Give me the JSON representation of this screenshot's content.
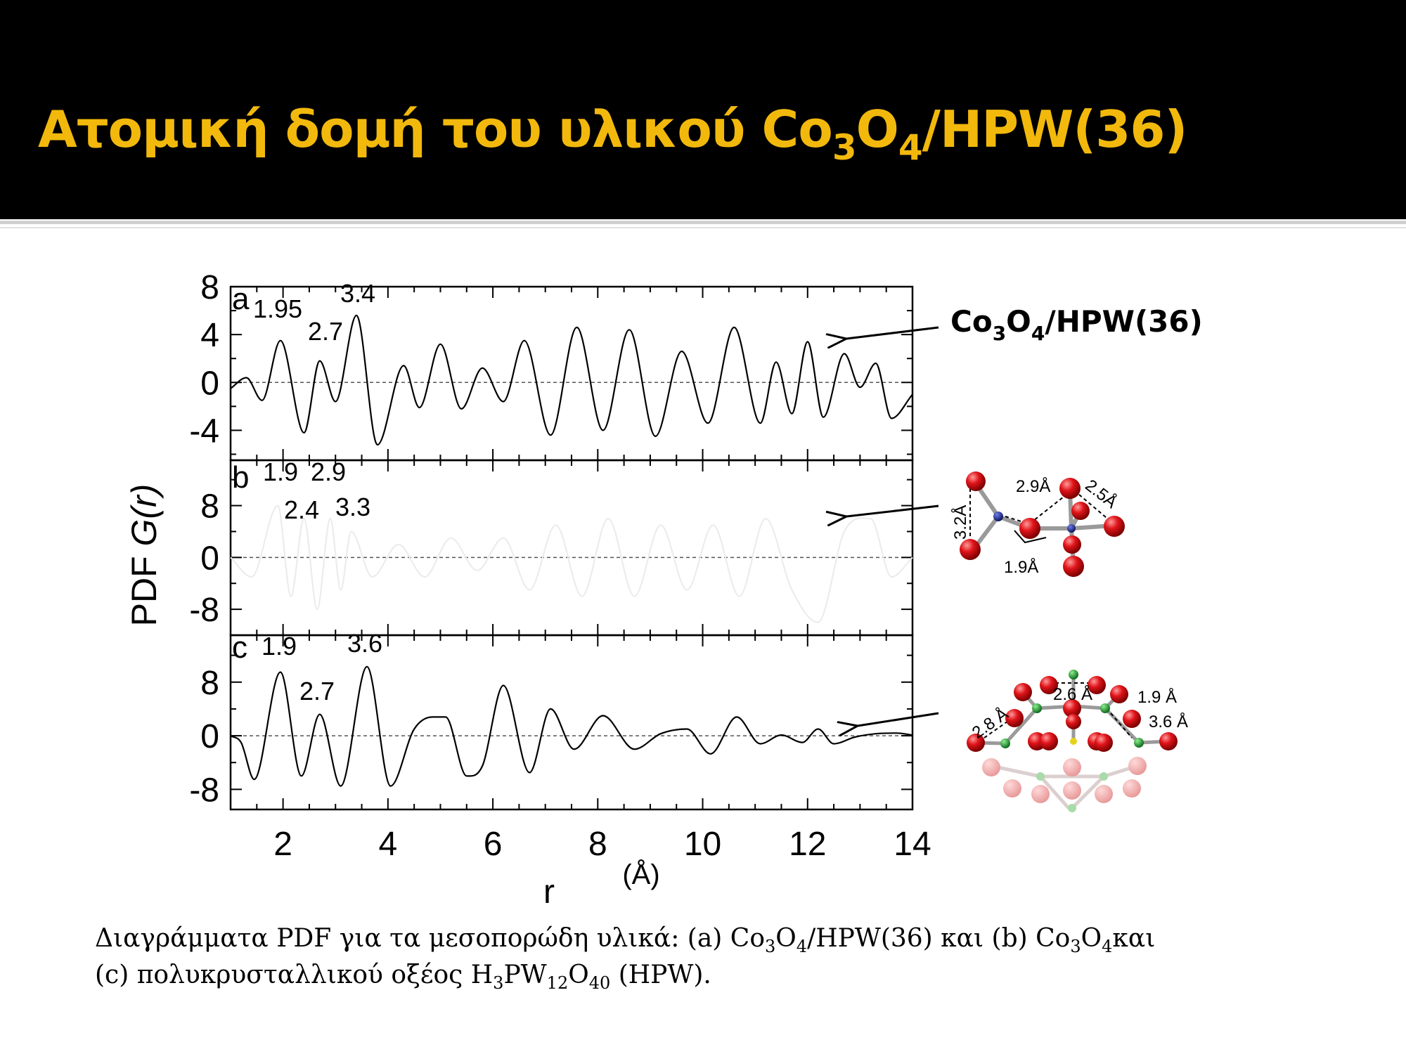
{
  "slide": {
    "title_main": "Ατομική δομή του υλικού Co",
    "title_sub1": "3",
    "title_mid": "O",
    "title_sub2": "4",
    "title_end": "/HPW(36)",
    "title_color": "#f2b90c",
    "header_color": "#000000"
  },
  "caption": {
    "p1": "Διαγράμματα PDF για τα μεσοπορώδη υλικά: (a) Co",
    "s1": "3",
    "p2": "O",
    "s2": "4",
    "p3": "/HPW(36) και (b) Co",
    "s3": "3",
    "p4": "O",
    "s4": "4",
    "p5": "και",
    "p6": "(c) πολυκρυσταλλικού οξέος H",
    "s5": "3",
    "p7": "PW",
    "s6": "12",
    "p8": "O",
    "s7": "40",
    "p9": " (HPW)."
  },
  "annotations": {
    "arrow_label_a_main": "Co",
    "arrow_label_a_s1": "3",
    "arrow_label_a_mid": "O",
    "arrow_label_a_s2": "4",
    "arrow_label_a_end": "/HPW(36)",
    "struct_b_labels": [
      "2.9Å",
      "2.5Å",
      "3.2Å",
      "1.9Å"
    ],
    "struct_c_labels": [
      "2.6 Å",
      "1.9 Å",
      "2.8 Å",
      "3.6 Å"
    ],
    "atom_color_oxygen": "#e0141a",
    "atom_color_cobalt": "#1a2a8c",
    "atom_color_tungsten": "#1f8c2e",
    "atom_color_phosphorus": "#e6d21a"
  },
  "chart_data": [
    {
      "type": "line",
      "panel_letter": "a",
      "xlim": [
        1,
        14
      ],
      "ylim": [
        -6.5,
        8
      ],
      "yticks": [
        -4,
        0,
        4,
        8
      ],
      "xlabel": "r",
      "xlabel_unit": "(Å)",
      "ylabel_prefix": "PDF ",
      "ylabel_italic": "G(r)",
      "xticks": [
        2,
        4,
        6,
        8,
        10,
        12,
        14
      ],
      "peak_labels": [
        "1.95",
        "2.7",
        "3.4"
      ],
      "line_color": "#000000",
      "x": [
        1.0,
        1.3,
        1.6,
        1.95,
        2.4,
        2.7,
        3.0,
        3.4,
        3.8,
        4.3,
        4.6,
        5.0,
        5.4,
        5.8,
        6.2,
        6.6,
        7.1,
        7.6,
        8.1,
        8.6,
        9.1,
        9.6,
        10.1,
        10.6,
        11.1,
        11.4,
        11.7,
        12.0,
        12.3,
        12.7,
        13.0,
        13.3,
        13.6,
        14.0
      ],
      "y": [
        -0.5,
        0.4,
        -1.5,
        3.5,
        -4.2,
        1.8,
        -1.6,
        5.6,
        -5.2,
        1.4,
        -2.1,
        3.2,
        -2.2,
        1.2,
        -1.6,
        3.5,
        -4.4,
        4.6,
        -4.0,
        4.4,
        -4.5,
        2.6,
        -3.4,
        4.6,
        -3.4,
        1.7,
        -2.6,
        3.4,
        -2.9,
        2.4,
        -0.4,
        1.6,
        -3.0,
        -1.0
      ]
    },
    {
      "type": "line",
      "panel_letter": "b",
      "xlim": [
        1,
        14
      ],
      "ylim": [
        -12,
        15
      ],
      "yticks": [
        -8,
        0,
        8
      ],
      "xticks": [
        2,
        4,
        6,
        8,
        10,
        12,
        14
      ],
      "peak_labels": [
        "1.9",
        "2.9",
        "2.4",
        "3.3"
      ],
      "line_color": "#ececec",
      "x": [
        1.0,
        1.4,
        1.9,
        2.15,
        2.4,
        2.65,
        2.9,
        3.1,
        3.3,
        3.7,
        4.2,
        4.7,
        5.2,
        5.7,
        6.2,
        6.7,
        7.2,
        7.7,
        8.2,
        8.7,
        9.2,
        9.7,
        10.2,
        10.7,
        11.2,
        11.7,
        12.2,
        12.7,
        13.2,
        13.6,
        14.0
      ],
      "y": [
        0,
        -3,
        8,
        -6,
        6,
        -8,
        6,
        -5,
        4,
        -3,
        2,
        -3,
        3,
        -2,
        3,
        -5,
        5,
        -6,
        6,
        -6,
        5,
        -5,
        5,
        -6,
        6,
        -5,
        -10,
        4,
        6,
        -3,
        0
      ]
    },
    {
      "type": "line",
      "panel_letter": "c",
      "xlim": [
        1,
        14
      ],
      "ylim": [
        -11,
        15
      ],
      "yticks": [
        -8,
        0,
        8
      ],
      "xticks": [
        2,
        4,
        6,
        8,
        10,
        12,
        14
      ],
      "peak_labels": [
        "1.9",
        "2.7",
        "3.6"
      ],
      "line_color": "#000000",
      "x": [
        1.0,
        1.2,
        1.45,
        1.95,
        2.35,
        2.7,
        3.1,
        3.6,
        4.05,
        4.5,
        4.85,
        5.1,
        5.5,
        5.8,
        6.2,
        6.7,
        7.1,
        7.55,
        8.1,
        8.7,
        9.2,
        9.7,
        10.15,
        10.65,
        11.1,
        11.5,
        11.9,
        12.2,
        12.5,
        12.9,
        13.3,
        13.7,
        14.0
      ],
      "y": [
        0,
        -1,
        -6.5,
        9.5,
        -6,
        3.2,
        -7.5,
        10.3,
        -7.5,
        1.0,
        2.8,
        2.8,
        -6.0,
        -4.5,
        7.5,
        -5.5,
        4.0,
        -2.0,
        3.0,
        -2.0,
        0.3,
        1.0,
        -2.7,
        2.8,
        -1.2,
        0.1,
        -1.0,
        1.0,
        -1.2,
        -0.2,
        0.3,
        0.4,
        0.1
      ]
    }
  ]
}
